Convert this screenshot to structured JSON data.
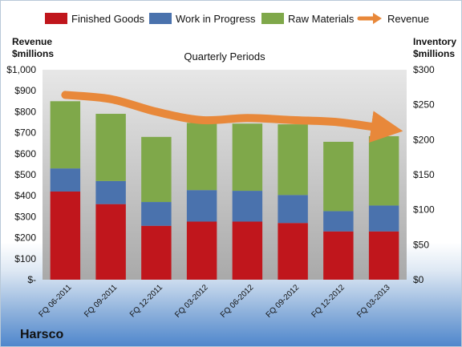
{
  "chart_data": {
    "type": "bar",
    "title": "Quarterly Periods",
    "company": "Harsco",
    "categories": [
      "FQ 06-2011",
      "FQ 09-2011",
      "FQ 12-2011",
      "FQ 03-2012",
      "FQ 06-2012",
      "FQ 09-2012",
      "FQ 12-2012",
      "FQ 03-2013"
    ],
    "left_axis": {
      "label_line1": "Revenue",
      "label_line2": "$millions",
      "ticks": [
        "$-",
        "$100",
        "$200",
        "$300",
        "$400",
        "$500",
        "$600",
        "$700",
        "$800",
        "$900",
        "$1,000"
      ],
      "ylim": [
        0,
        1000
      ]
    },
    "right_axis": {
      "label_line1": "Inventory",
      "label_line2": "$millions",
      "ticks": [
        "$0",
        "$50",
        "$100",
        "$150",
        "$200",
        "$250",
        "$300"
      ],
      "ylim": [
        0,
        300
      ]
    },
    "stacked": true,
    "series": [
      {
        "name": "Finished Goods",
        "axis": "right",
        "color": "#c0161c",
        "values": [
          126,
          108,
          77,
          83,
          83,
          81,
          69,
          69
        ]
      },
      {
        "name": "Work in Progress",
        "axis": "right",
        "color": "#4a72ad",
        "values": [
          33,
          33,
          34,
          45,
          44,
          40,
          29,
          37
        ]
      },
      {
        "name": "Raw Materials",
        "axis": "right",
        "color": "#7fa84a",
        "values": [
          96,
          96,
          93,
          96,
          96,
          101,
          99,
          99
        ]
      }
    ],
    "revenue_series": {
      "name": "Revenue",
      "axis": "left",
      "type": "line",
      "color": "#e8883a",
      "values": [
        880,
        860,
        800,
        760,
        770,
        760,
        750,
        720
      ]
    },
    "legend_position": "top",
    "grid": false
  }
}
